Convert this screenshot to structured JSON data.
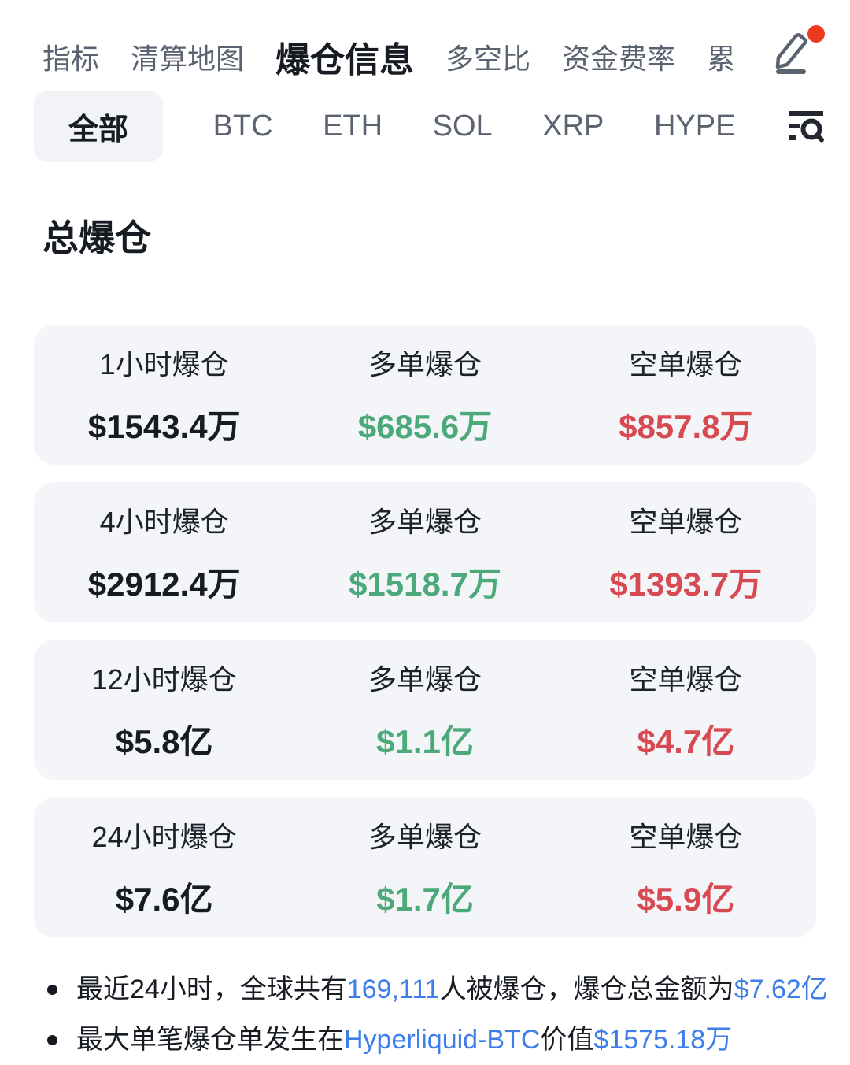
{
  "colors": {
    "ink": "#171b22",
    "muted": "#5c6370",
    "long-green": "#4ca97a",
    "short-red": "#d84a52",
    "link-blue": "#3d7eea",
    "card-bg": "#f4f5f8",
    "chip-bg": "#f1f3f6",
    "badge-red": "#ee3a21"
  },
  "nav": {
    "items": [
      {
        "label": "指标",
        "active": false
      },
      {
        "label": "清算地图",
        "active": false
      },
      {
        "label": "爆仓信息",
        "active": true
      },
      {
        "label": "多空比",
        "active": false
      },
      {
        "label": "资金费率",
        "active": false
      },
      {
        "label": "累",
        "active": false
      }
    ],
    "edit_icon": "pencil-edit-icon",
    "notification_badge": true
  },
  "filters": {
    "items": [
      {
        "label": "全部",
        "selected": true
      },
      {
        "label": "BTC",
        "selected": false
      },
      {
        "label": "ETH",
        "selected": false
      },
      {
        "label": "SOL",
        "selected": false
      },
      {
        "label": "XRP",
        "selected": false
      },
      {
        "label": "HYPE",
        "selected": false
      }
    ],
    "search_icon": "filter-search-icon"
  },
  "section_title": "总爆仓",
  "cards": [
    {
      "period_label": "1小时爆仓",
      "total": "$1543.4万",
      "long_label": "多单爆仓",
      "long_value": "$685.6万",
      "short_label": "空单爆仓",
      "short_value": "$857.8万"
    },
    {
      "period_label": "4小时爆仓",
      "total": "$2912.4万",
      "long_label": "多单爆仓",
      "long_value": "$1518.7万",
      "short_label": "空单爆仓",
      "short_value": "$1393.7万"
    },
    {
      "period_label": "12小时爆仓",
      "total": "$5.8亿",
      "long_label": "多单爆仓",
      "long_value": "$1.1亿",
      "short_label": "空单爆仓",
      "short_value": "$4.7亿"
    },
    {
      "period_label": "24小时爆仓",
      "total": "$7.6亿",
      "long_label": "多单爆仓",
      "long_value": "$1.7亿",
      "short_label": "空单爆仓",
      "short_value": "$5.9亿"
    }
  ],
  "notes": [
    {
      "segments": [
        {
          "text": "最近24小时，全球共有",
          "highlight": false
        },
        {
          "text": "169,111",
          "highlight": true
        },
        {
          "text": "人被爆仓，爆仓总金额为",
          "highlight": false
        },
        {
          "text": "$7.62亿",
          "highlight": true
        }
      ]
    },
    {
      "segments": [
        {
          "text": "最大单笔爆仓单发生在",
          "highlight": false
        },
        {
          "text": "Hyperliquid-BTC",
          "highlight": true
        },
        {
          "text": "价值 ",
          "highlight": false
        },
        {
          "text": "$1575.18万",
          "highlight": true
        }
      ]
    }
  ]
}
